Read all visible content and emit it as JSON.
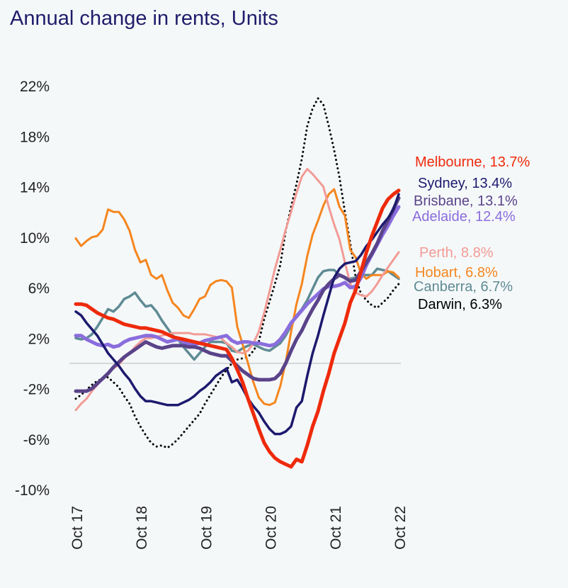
{
  "chart_data": {
    "type": "line",
    "title": "Annual change in rents, Units",
    "xlabel": "",
    "ylabel": "",
    "frequency": "monthly",
    "x_range": [
      "Oct 17",
      "Oct 22"
    ],
    "x_ticks": [
      "Oct 17",
      "Oct 18",
      "Oct 19",
      "Oct 20",
      "Oct 21",
      "Oct 22"
    ],
    "y_ticks": [
      "22%",
      "18%",
      "14%",
      "10%",
      "6%",
      "2%",
      "-2%",
      "-6%",
      "-10%"
    ],
    "y_tick_values": [
      22,
      18,
      14,
      10,
      6,
      2,
      -2,
      -6,
      -10
    ],
    "ylim": [
      -10,
      22
    ],
    "zero_line": true,
    "grid": false,
    "legend": "right, inline end labels",
    "series": [
      {
        "name": "Melbourne",
        "label": "Melbourne, 13.7%",
        "color": "#ee2a0b",
        "style": "solid",
        "values": [
          4.7,
          4.7,
          4.6,
          4.3,
          4.0,
          3.8,
          3.6,
          3.5,
          3.3,
          3.1,
          3.0,
          2.9,
          2.8,
          2.8,
          2.7,
          2.6,
          2.5,
          2.3,
          2.1,
          2.0,
          1.9,
          1.8,
          1.7,
          1.6,
          1.5,
          1.4,
          1.3,
          1.2,
          1.1,
          0.4,
          -0.5,
          -1.5,
          -2.8,
          -4.0,
          -5.2,
          -6.3,
          -7.0,
          -7.5,
          -7.8,
          -8.0,
          -8.2,
          -7.6,
          -7.8,
          -6.5,
          -5.0,
          -3.8,
          -2.2,
          -0.8,
          0.8,
          2.0,
          3.2,
          4.8,
          5.8,
          7.3,
          8.8,
          10.1,
          11.2,
          12.3,
          13.0,
          13.4,
          13.7
        ]
      },
      {
        "name": "Sydney",
        "label": "Sydney, 13.4%",
        "color": "#1d1a6e",
        "style": "solid",
        "values": [
          4.1,
          3.8,
          3.2,
          2.7,
          2.2,
          1.5,
          0.8,
          0.3,
          -0.2,
          -0.8,
          -1.3,
          -2.0,
          -2.6,
          -3.0,
          -3.0,
          -3.1,
          -3.2,
          -3.3,
          -3.3,
          -3.3,
          -3.1,
          -2.9,
          -2.6,
          -2.2,
          -1.9,
          -1.5,
          -1.0,
          -0.7,
          -0.4,
          -1.5,
          -1.3,
          -2.0,
          -2.8,
          -3.4,
          -3.9,
          -4.6,
          -5.2,
          -5.6,
          -5.6,
          -5.4,
          -5.0,
          -3.5,
          -3.0,
          -1.0,
          0.8,
          2.2,
          3.8,
          5.3,
          6.8,
          7.5,
          7.9,
          8.0,
          8.1,
          8.6,
          9.3,
          9.8,
          10.4,
          11.0,
          11.5,
          12.2,
          13.4
        ]
      },
      {
        "name": "Brisbane",
        "label": "Brisbane, 13.1%",
        "color": "#5a4389",
        "style": "solid",
        "values": [
          -2.2,
          -2.2,
          -2.2,
          -2.0,
          -1.6,
          -1.2,
          -0.8,
          -0.3,
          0.1,
          0.5,
          0.8,
          1.1,
          1.4,
          1.7,
          1.5,
          1.3,
          1.2,
          1.3,
          1.4,
          1.4,
          1.4,
          1.3,
          1.3,
          1.2,
          1.0,
          0.8,
          0.7,
          0.6,
          0.6,
          0.2,
          -0.2,
          -0.6,
          -0.9,
          -1.2,
          -1.3,
          -1.3,
          -1.3,
          -1.2,
          -0.8,
          0.0,
          1.0,
          1.9,
          2.6,
          3.5,
          4.3,
          5.0,
          5.8,
          6.3,
          6.7,
          7.0,
          6.8,
          6.5,
          6.6,
          7.3,
          8.0,
          8.7,
          9.5,
          10.5,
          11.3,
          12.2,
          13.1
        ]
      },
      {
        "name": "Adelaide",
        "label": "Adelaide, 12.4%",
        "color": "#8a6ddd",
        "style": "solid",
        "values": [
          2.2,
          2.2,
          1.9,
          1.7,
          1.5,
          1.4,
          1.5,
          1.3,
          1.4,
          1.7,
          1.9,
          2.0,
          2.1,
          2.2,
          2.2,
          2.1,
          1.9,
          1.7,
          1.8,
          1.9,
          1.7,
          1.5,
          1.5,
          1.6,
          1.8,
          1.9,
          2.0,
          2.1,
          2.2,
          1.8,
          1.6,
          1.7,
          1.7,
          1.6,
          1.6,
          1.5,
          1.4,
          1.5,
          1.9,
          2.5,
          3.2,
          3.7,
          4.2,
          4.7,
          5.1,
          5.5,
          5.9,
          6.1,
          6.1,
          6.2,
          6.4,
          6.0,
          6.1,
          6.8,
          7.8,
          8.6,
          9.4,
          10.2,
          10.9,
          11.7,
          12.4
        ]
      },
      {
        "name": "Perth",
        "label": "Perth, 8.8%",
        "color": "#f29b95",
        "style": "solid",
        "values": [
          -3.7,
          -3.2,
          -2.8,
          -2.2,
          -1.7,
          -1.2,
          -0.8,
          -0.4,
          -0.1,
          0.4,
          0.8,
          1.3,
          1.7,
          2.0,
          2.0,
          2.1,
          2.2,
          2.3,
          2.4,
          2.4,
          2.4,
          2.4,
          2.3,
          2.3,
          2.3,
          2.2,
          2.1,
          2.0,
          1.6,
          1.3,
          0.9,
          0.8,
          1.0,
          1.6,
          2.5,
          4.0,
          5.7,
          7.5,
          9.0,
          10.6,
          12.0,
          13.5,
          14.8,
          15.4,
          15.0,
          14.5,
          14.0,
          12.4,
          11.0,
          9.8,
          8.0,
          6.3,
          5.6,
          5.4,
          5.3,
          5.7,
          6.3,
          7.0,
          7.6,
          8.2,
          8.8
        ]
      },
      {
        "name": "Hobart",
        "label": "Hobart, 6.8%",
        "color": "#f5861f",
        "style": "solid",
        "values": [
          9.9,
          9.3,
          9.7,
          10.0,
          10.1,
          10.6,
          12.2,
          12.0,
          12.0,
          11.4,
          10.5,
          9.0,
          8.0,
          8.2,
          7.0,
          6.7,
          7.0,
          5.8,
          4.8,
          4.4,
          3.8,
          3.6,
          4.3,
          5.1,
          5.3,
          6.2,
          6.5,
          6.6,
          6.5,
          6.0,
          2.9,
          1.5,
          0.0,
          -1.5,
          -2.7,
          -3.2,
          -3.3,
          -3.1,
          -1.8,
          0.1,
          2.5,
          4.7,
          6.3,
          8.5,
          10.2,
          11.3,
          12.5,
          13.4,
          13.8,
          12.4,
          11.7,
          9.0,
          8.4,
          7.1,
          6.7,
          7.0,
          7.0,
          7.0,
          7.3,
          7.2,
          6.8
        ]
      },
      {
        "name": "Canberra",
        "label": "Canberra, 6.7%",
        "color": "#5f8b94",
        "style": "solid",
        "values": [
          2.0,
          1.9,
          2.0,
          2.3,
          2.9,
          3.6,
          4.3,
          4.1,
          4.5,
          5.1,
          5.3,
          5.6,
          5.0,
          4.5,
          4.6,
          4.1,
          3.4,
          2.8,
          2.2,
          1.9,
          1.3,
          0.8,
          0.3,
          0.8,
          1.3,
          1.7,
          1.7,
          1.7,
          1.6,
          1.0,
          0.9,
          1.2,
          1.4,
          1.5,
          1.3,
          1.1,
          1.0,
          1.3,
          1.6,
          2.2,
          3.0,
          3.8,
          4.3,
          5.0,
          5.9,
          6.8,
          7.3,
          7.4,
          7.4,
          7.0,
          6.8,
          6.7,
          6.8,
          7.0,
          7.0,
          7.0,
          7.5,
          7.4,
          7.3,
          7.0,
          6.7
        ]
      },
      {
        "name": "Darwin",
        "label": "Darwin, 6.3%",
        "color": "#000000",
        "style": "dotted",
        "values": [
          -2.8,
          -2.5,
          -2.1,
          -1.7,
          -1.4,
          -1.2,
          -1.1,
          -1.5,
          -1.9,
          -2.6,
          -3.2,
          -4.2,
          -5.0,
          -5.7,
          -6.3,
          -6.6,
          -6.5,
          -6.7,
          -6.4,
          -6.0,
          -5.5,
          -5.0,
          -4.5,
          -4.0,
          -3.2,
          -2.5,
          -1.8,
          -1.1,
          -0.5,
          0.0,
          0.3,
          0.4,
          0.5,
          1.0,
          1.7,
          3.5,
          4.9,
          6.3,
          7.8,
          10.5,
          12.4,
          14.2,
          16.2,
          18.8,
          20.2,
          21.0,
          20.5,
          18.8,
          16.9,
          14.7,
          12.0,
          9.5,
          6.8,
          5.5,
          5.0,
          4.6,
          4.4,
          4.8,
          5.2,
          5.8,
          6.3
        ]
      }
    ]
  }
}
